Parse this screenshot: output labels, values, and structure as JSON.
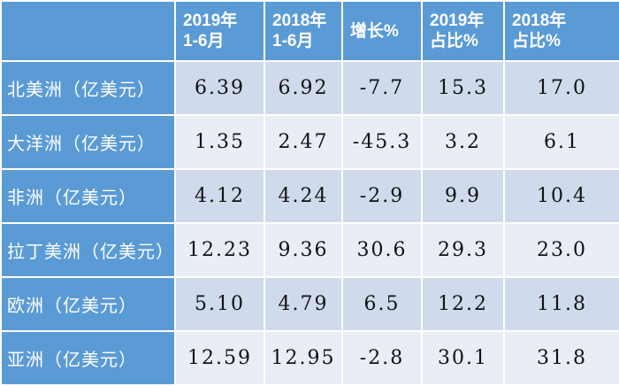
{
  "table": {
    "headers": [
      "",
      "2019年\n1-6月",
      "2018年\n1-6月",
      "增长%",
      "2019年\n占比%",
      "2018年\n占比%"
    ],
    "header_lines": [
      [
        "",
        ""
      ],
      [
        "2019年",
        "1-6月"
      ],
      [
        "2018年",
        "1-6月"
      ],
      [
        "增长%",
        ""
      ],
      [
        "2019年",
        "占比%"
      ],
      [
        "2018年",
        "占比%"
      ]
    ],
    "rows": [
      [
        "北美洲（亿美元）",
        "6.39",
        "6.92",
        "-7.7",
        "15.3",
        "17.0"
      ],
      [
        "大洋洲（亿美元）",
        "1.35",
        "2.47",
        "-45.3",
        "3.2",
        "6.1"
      ],
      [
        "非洲（亿美元）",
        "4.12",
        "4.24",
        "-2.9",
        "9.9",
        "10.4"
      ],
      [
        "拉丁美洲（亿美元）",
        "12.23",
        "9.36",
        "30.6",
        "29.3",
        "23.0"
      ],
      [
        "欧洲（亿美元）",
        "5.10",
        "4.79",
        "6.5",
        "12.2",
        "11.8"
      ],
      [
        "亚洲（亿美元）",
        "12.59",
        "12.95",
        "-2.8",
        "30.1",
        "31.8"
      ]
    ]
  },
  "colors": {
    "header_bg": "#5b9bd5",
    "row_even_bg": "#cfdaec",
    "row_odd_bg": "#e8edf6"
  }
}
